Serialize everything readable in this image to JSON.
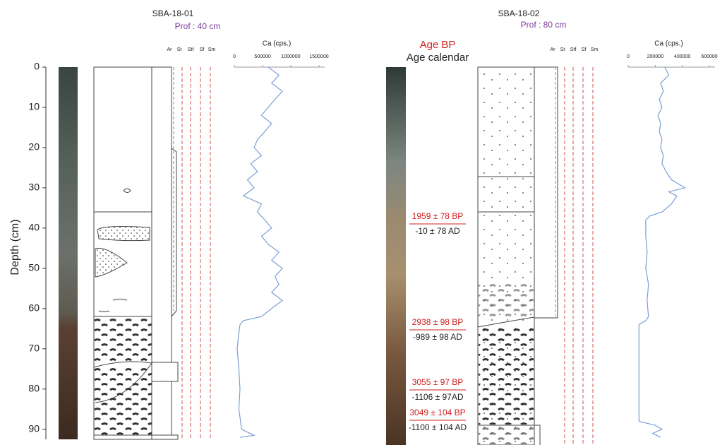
{
  "cores": [
    {
      "title": "SBA-18-01",
      "subtitle": "Prof : 40 cm",
      "grain_labels": [
        "Ar",
        "St",
        "Stf",
        "Sf",
        "Sm"
      ]
    },
    {
      "title": "SBA-18-02",
      "subtitle": "Prof : 80 cm",
      "grain_labels": [
        "Ar",
        "St",
        "Stf",
        "Sf",
        "Sm"
      ],
      "age_header": "Age BP",
      "calendar_header": "Age calendar",
      "ages": [
        {
          "bp": "1959 ± 78 BP",
          "cal": "-10 ± 78 AD"
        },
        {
          "bp": "2938 ± 98 BP",
          "cal": "-989 ± 98 AD"
        },
        {
          "bp": "3055 ± 97 BP",
          "cal": "-1106 ± 97AD"
        },
        {
          "bp": "3049 ± 104 BP",
          "cal": "-1100 ± 104 AD"
        }
      ]
    }
  ],
  "chart_data": [
    {
      "type": "line",
      "title": "Ca (cps.)",
      "x_label": "Depth (cm)",
      "color": "#7a9fd4",
      "xlim": [
        0,
        92.5
      ],
      "xticks": [
        0,
        10,
        20,
        30,
        40,
        50,
        60,
        70,
        80,
        90
      ],
      "ylim": [
        0,
        1500000
      ],
      "yticks": [
        0,
        500000,
        1000000,
        1500000
      ],
      "x": [
        0,
        2,
        4,
        6,
        8,
        10,
        12,
        14,
        16,
        18,
        20,
        22,
        24,
        26,
        28,
        30,
        32,
        34,
        36,
        38,
        40,
        42,
        44,
        46,
        48,
        50,
        52,
        54,
        56,
        58,
        60,
        62,
        63,
        64,
        66,
        70,
        75,
        80,
        85,
        90,
        91.5,
        92
      ],
      "values": [
        600000,
        790000,
        660000,
        850000,
        720000,
        600000,
        480000,
        660000,
        540000,
        410000,
        350000,
        480000,
        290000,
        410000,
        230000,
        350000,
        160000,
        480000,
        410000,
        540000,
        660000,
        480000,
        600000,
        790000,
        660000,
        850000,
        720000,
        790000,
        660000,
        850000,
        660000,
        480000,
        160000,
        100000,
        80000,
        50000,
        80000,
        100000,
        80000,
        130000,
        350000,
        100000
      ]
    },
    {
      "type": "line",
      "title": "Ca (cps.)",
      "color": "#7a9fd4",
      "xlim": [
        0,
        92.5
      ],
      "ylim": [
        0,
        600000
      ],
      "yticks": [
        0,
        200000,
        400000,
        600000
      ],
      "x": [
        0,
        2,
        4,
        6,
        8,
        10,
        12,
        14,
        16,
        18,
        20,
        22,
        24,
        26,
        28,
        30,
        31,
        32,
        34,
        36,
        37,
        38,
        42,
        46,
        50,
        54,
        58,
        62,
        63,
        64,
        70,
        75,
        80,
        85,
        88,
        89,
        90,
        91,
        92
      ],
      "values": [
        270000,
        300000,
        240000,
        260000,
        230000,
        250000,
        220000,
        240000,
        230000,
        250000,
        240000,
        260000,
        250000,
        280000,
        320000,
        420000,
        300000,
        360000,
        320000,
        250000,
        160000,
        130000,
        130000,
        140000,
        130000,
        150000,
        140000,
        150000,
        130000,
        80000,
        80000,
        80000,
        80000,
        80000,
        80000,
        200000,
        250000,
        180000,
        240000
      ]
    }
  ]
}
